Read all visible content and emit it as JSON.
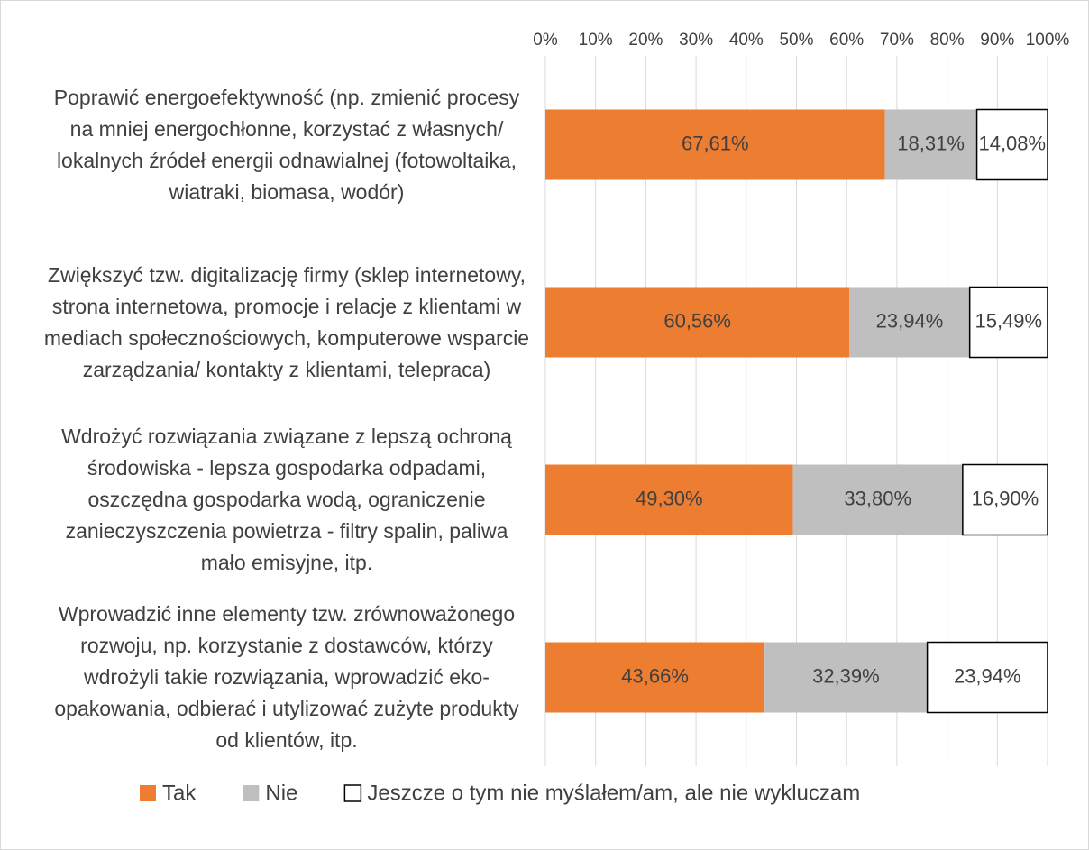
{
  "chart_data": {
    "type": "stacked_bar_horizontal",
    "categories": [
      "Poprawić energoefektywność (np. zmienić procesy na mniej energochłonne, korzystać z własnych/ lokalnych źródeł energii odnawialnej (fotowoltaika, wiatraki, biomasa, wodór)",
      "Zwiększyć tzw. digitalizację firmy (sklep internetowy, strona internetowa, promocje i relacje z klientami w mediach społecznościowych, komputerowe wsparcie zarządzania/ kontakty z klientami,  telepraca)",
      "Wdrożyć rozwiązania związane z lepszą ochroną środowiska - lepsza gospodarka odpadami, oszczędna gospodarka wodą, ograniczenie zanieczyszczenia powietrza - filtry spalin, paliwa mało emisyjne, itp.",
      "Wprowadzić inne elementy tzw. zrównoważonego rozwoju, np. korzystanie z dostawców, którzy wdrożyli takie rozwiązania, wprowadzić eko-opakowania, odbierać i utylizować zużyte produkty od klientów, itp."
    ],
    "series": [
      {
        "name": "Tak",
        "color": "#ed7d31",
        "values": [
          67.61,
          60.56,
          49.3,
          43.66
        ],
        "value_labels": [
          "67,61%",
          "60,56%",
          "49,30%",
          "43,66%"
        ]
      },
      {
        "name": "Nie",
        "color": "#bfbfbf",
        "values": [
          18.31,
          23.94,
          33.8,
          32.39
        ],
        "value_labels": [
          "18,31%",
          "23,94%",
          "33,80%",
          "32,39%"
        ]
      },
      {
        "name": "Jeszcze o tym nie myślałem/am, ale nie wykluczam",
        "color": "#ffffff",
        "values": [
          14.08,
          15.49,
          16.9,
          23.94
        ],
        "value_labels": [
          "14,08%",
          "15,49%",
          "16,90%",
          "23,94%"
        ]
      }
    ],
    "xlim": [
      0,
      100
    ],
    "xticks": [
      {
        "value": 0,
        "label": "0%"
      },
      {
        "value": 10,
        "label": "10%"
      },
      {
        "value": 20,
        "label": "20%"
      },
      {
        "value": 30,
        "label": "30%"
      },
      {
        "value": 40,
        "label": "40%"
      },
      {
        "value": 50,
        "label": "50%"
      },
      {
        "value": 60,
        "label": "60%"
      },
      {
        "value": 70,
        "label": "70%"
      },
      {
        "value": 80,
        "label": "80%"
      },
      {
        "value": 90,
        "label": "90%"
      },
      {
        "value": 100,
        "label": "100%"
      }
    ],
    "grid": true,
    "legend": "bottom"
  }
}
